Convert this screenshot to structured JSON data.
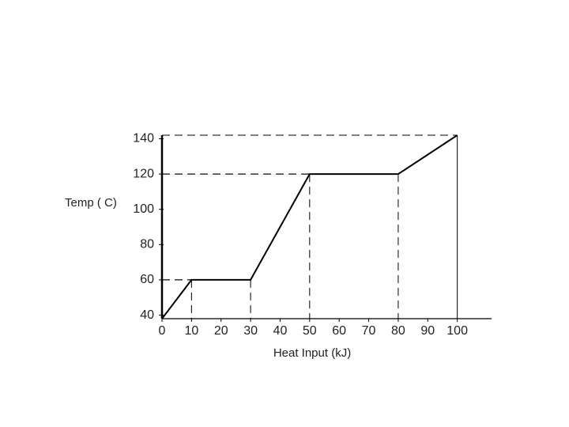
{
  "chart_data": {
    "type": "line",
    "y_label": "Temp ( C)",
    "x_label": "Heat Input (kJ)",
    "x": [
      0,
      10,
      30,
      50,
      80,
      100
    ],
    "values": [
      38,
      60,
      60,
      120,
      120,
      142
    ],
    "color": "#000000",
    "xlim": [
      0,
      110
    ],
    "xticks": [
      0,
      10,
      20,
      30,
      40,
      50,
      60,
      70,
      80,
      90,
      100
    ],
    "ylim": [
      38,
      142
    ],
    "yticks": [
      40,
      60,
      80,
      100,
      120,
      140
    ],
    "guides": true
  }
}
